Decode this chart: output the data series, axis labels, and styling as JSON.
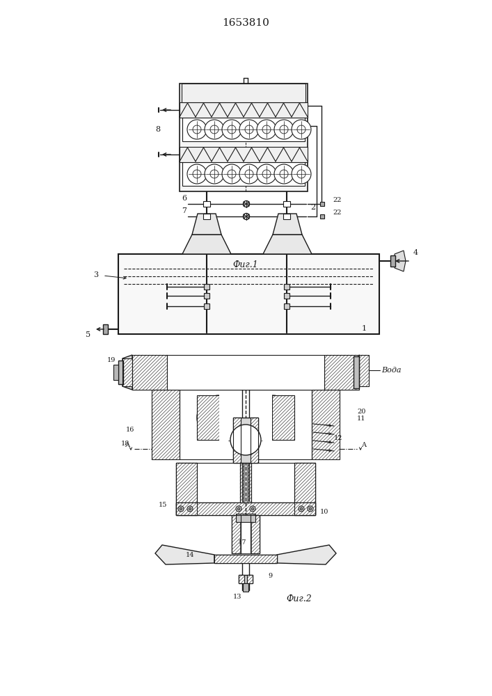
{
  "title": "1653810",
  "fig1_label": "Фиг.1",
  "fig2_label": "Фиг.2",
  "voda_label": "Вода",
  "bg": "#ffffff",
  "lc": "#1a1a1a"
}
